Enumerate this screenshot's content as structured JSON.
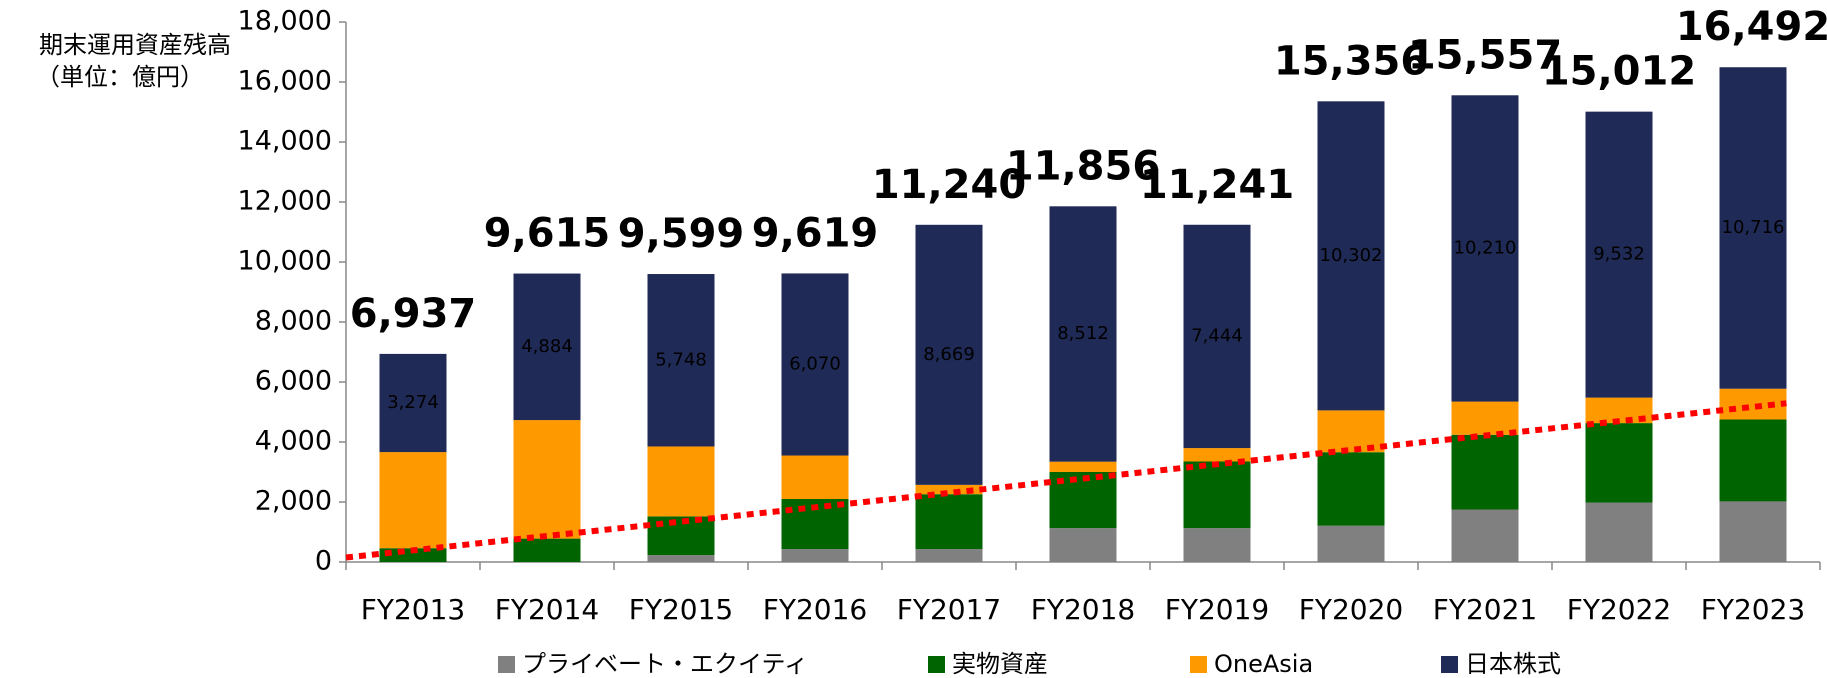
{
  "chart_data": {
    "type": "stacked_bar",
    "y_axis_title": [
      "期末運用資産残高",
      "（単位：億円）"
    ],
    "categories": [
      "FY2013",
      "FY2014",
      "FY2015",
      "FY2016",
      "FY2017",
      "FY2018",
      "FY2019",
      "FY2020",
      "FY2021",
      "FY2022",
      "FY2023"
    ],
    "series": [
      {
        "name": "プライベート・エクイティ",
        "color": "#808080",
        "values": [
          0,
          0,
          230,
          430,
          430,
          1130,
          1130,
          1210,
          1750,
          1980,
          2020
        ]
      },
      {
        "name": "実物資産",
        "color": "#006400",
        "values": [
          460,
          780,
          1290,
          1670,
          1830,
          1870,
          2220,
          2450,
          2490,
          2650,
          2730
        ]
      },
      {
        "name": "OneAsia",
        "color": "#ff9900",
        "values": [
          3203,
          3951,
          2331,
          1449,
          311,
          344,
          447,
          1394,
          1107,
          850,
          1026
        ]
      },
      {
        "name": "日本株式",
        "color": "#1f2a56",
        "values": [
          3274,
          4884,
          5748,
          6070,
          8669,
          8512,
          7444,
          10302,
          10210,
          9532,
          10716
        ],
        "value_labels": [
          "3,274",
          "4,884",
          "5,748",
          "6,070",
          "8,669",
          "8,512",
          "7,444",
          "10,302",
          "10,210",
          "9,532",
          "10,716"
        ]
      }
    ],
    "totals": [
      6937,
      9615,
      9599,
      9619,
      11240,
      11856,
      11241,
      15356,
      15557,
      15012,
      16492
    ],
    "total_labels": [
      "6,937",
      "9,615",
      "9,599",
      "9,619",
      "11,240",
      "11,856",
      "11,241",
      "15,356",
      "15,557",
      "15,012",
      "16,492"
    ],
    "trendline": {
      "color": "#ff0000",
      "values": [
        150,
        5290
      ]
    },
    "ylim": [
      0,
      18000
    ],
    "yticks": [
      0,
      {
        "value": 2000,
        "label": "2,000"
      },
      {
        "value": 4000,
        "label": "4,000"
      },
      {
        "value": 6000,
        "label": "6,000"
      },
      {
        "value": 8000,
        "label": "8,000"
      },
      {
        "value": 10000,
        "label": "10,000"
      },
      {
        "value": 12000,
        "label": "12,000"
      },
      {
        "value": 14000,
        "label": "14,000"
      },
      {
        "value": 16000,
        "label": "16,000"
      },
      {
        "value": 18000,
        "label": "18,000"
      }
    ],
    "grid": false,
    "legend": "bottom"
  }
}
